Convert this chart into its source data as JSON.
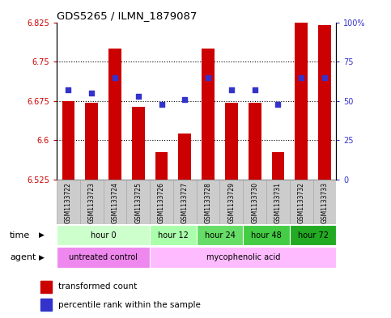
{
  "title": "GDS5265 / ILMN_1879087",
  "samples": [
    "GSM1133722",
    "GSM1133723",
    "GSM1133724",
    "GSM1133725",
    "GSM1133726",
    "GSM1133727",
    "GSM1133728",
    "GSM1133729",
    "GSM1133730",
    "GSM1133731",
    "GSM1133732",
    "GSM1133733"
  ],
  "bar_values": [
    6.675,
    6.672,
    6.775,
    6.664,
    6.578,
    6.613,
    6.775,
    6.672,
    6.672,
    6.578,
    6.84,
    6.82
  ],
  "percentile_values": [
    57,
    55,
    65,
    53,
    48,
    51,
    65,
    57,
    57,
    48,
    65,
    65
  ],
  "ylim_left": [
    6.525,
    6.825
  ],
  "yticks_left": [
    6.525,
    6.6,
    6.675,
    6.75,
    6.825
  ],
  "ytick_labels_left": [
    "6.525",
    "6.6",
    "6.675",
    "6.75",
    "6.825"
  ],
  "ylim_right": [
    0,
    100
  ],
  "yticks_right": [
    0,
    25,
    50,
    75,
    100
  ],
  "ytick_labels_right": [
    "0",
    "25",
    "50",
    "75",
    "100%"
  ],
  "bar_color": "#cc0000",
  "dot_color": "#3333cc",
  "bar_bottom": 6.525,
  "time_groups": [
    {
      "label": "hour 0",
      "start": 0,
      "end": 4,
      "color": "#ccffcc"
    },
    {
      "label": "hour 12",
      "start": 4,
      "end": 6,
      "color": "#aaffaa"
    },
    {
      "label": "hour 24",
      "start": 6,
      "end": 8,
      "color": "#66dd66"
    },
    {
      "label": "hour 48",
      "start": 8,
      "end": 10,
      "color": "#44cc44"
    },
    {
      "label": "hour 72",
      "start": 10,
      "end": 12,
      "color": "#22aa22"
    }
  ],
  "agent_untreated": {
    "label": "untreated control",
    "start": 0,
    "end": 4,
    "color": "#ee88ee"
  },
  "agent_myco": {
    "label": "mycophenolic acid",
    "start": 4,
    "end": 12,
    "color": "#ffbbff"
  },
  "legend_bar_label": "transformed count",
  "legend_dot_label": "percentile rank within the sample",
  "sample_bg_color": "#cccccc",
  "sample_border_color": "#aaaaaa"
}
